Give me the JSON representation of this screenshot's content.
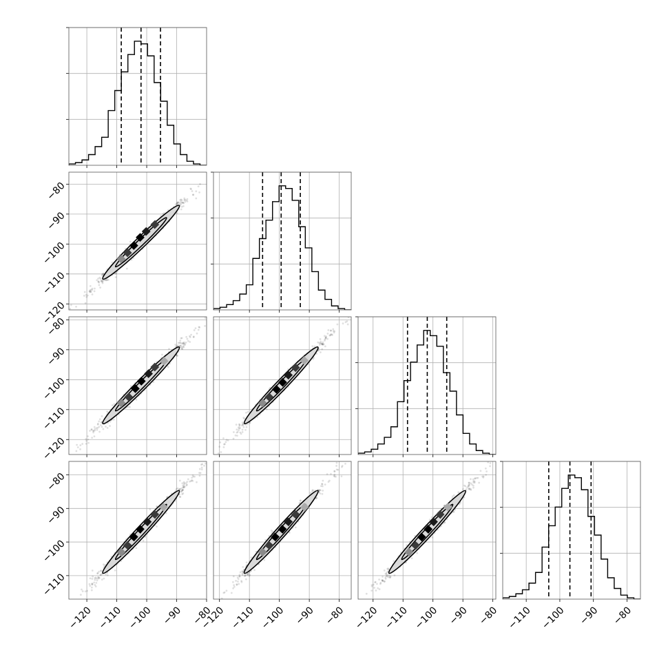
{
  "chart_data": {
    "type": "scatter",
    "plot_kind": "corner",
    "n_params": 4,
    "quantiles": [
      0.16,
      0.5,
      0.84
    ],
    "grid": true,
    "params": [
      {
        "range": [
          -126,
          -80
        ],
        "median": -101.9,
        "q16": -108.5,
        "q84": -95.4,
        "y_ticks": [
          -120,
          -110,
          -100,
          -90,
          -80
        ],
        "x_ticks": [
          -120,
          -110,
          -100,
          -90,
          -80
        ],
        "x_tick_labels": [
          "−120",
          "−110",
          "−100",
          "−90",
          "−80"
        ],
        "hist_counts": [
          1,
          2,
          4,
          8,
          14,
          21,
          41,
          56,
          70,
          83,
          93,
          91,
          82,
          62,
          48,
          30,
          16,
          8,
          3,
          1,
          0
        ]
      },
      {
        "range": [
          -122,
          -76
        ],
        "median": -99.4,
        "q16": -105.6,
        "q84": -93.0,
        "y_ticks": [
          -120,
          -110,
          -100,
          -90,
          -80
        ],
        "y_tick_labels": [
          "−120",
          "−110",
          "−100",
          "−90",
          "−80"
        ],
        "x_ticks": [
          -120,
          -110,
          -100,
          -90,
          -80
        ],
        "x_tick_labels": [
          "−120",
          "−110",
          "−100",
          "−90",
          "−80"
        ],
        "hist_counts": [
          1,
          2,
          4,
          7,
          12,
          19,
          39,
          54,
          68,
          82,
          94,
          92,
          83,
          63,
          47,
          29,
          15,
          8,
          3,
          1,
          0
        ]
      },
      {
        "range": [
          -125,
          -79
        ],
        "median": -101.9,
        "q16": -108.5,
        "q84": -95.4,
        "y_ticks": [
          -120,
          -110,
          -100,
          -90,
          -80
        ],
        "y_tick_labels": [
          "−120",
          "−110",
          "−100",
          "−90",
          "−80"
        ],
        "x_ticks": [
          -120,
          -110,
          -100,
          -90,
          -80
        ],
        "x_tick_labels": [
          "−120",
          "−110",
          "−100",
          "−90",
          "−80"
        ],
        "hist_counts": [
          1,
          2,
          4,
          8,
          13,
          21,
          40,
          56,
          70,
          83,
          94,
          90,
          82,
          62,
          48,
          30,
          16,
          8,
          3,
          1,
          0
        ]
      },
      {
        "range": [
          -117,
          -76
        ],
        "median": -97.0,
        "q16": -103.3,
        "q84": -90.7,
        "y_ticks": [
          -110,
          -100,
          -90,
          -80
        ],
        "y_tick_labels": [
          "−110",
          "−100",
          "−90",
          "−80"
        ],
        "x_ticks": [
          -110,
          -100,
          -90,
          -80
        ],
        "x_tick_labels": [
          "−110",
          "−100",
          "−90",
          "−80"
        ],
        "hist_counts": [
          1,
          2,
          4,
          7,
          12,
          20,
          39,
          55,
          69,
          83,
          93,
          91,
          82,
          62,
          48,
          30,
          16,
          8,
          3,
          1,
          0
        ]
      }
    ],
    "density_peaks": {
      "p1_vs_p0": [
        [
          -108.5,
          -105.0
        ],
        [
          -106.4,
          -102.9
        ],
        [
          -104.3,
          -100.5
        ],
        [
          -102.2,
          -97.8
        ],
        [
          -100.2,
          -95.8
        ],
        [
          -97.3,
          -93.5
        ]
      ],
      "p2_vs_p0": [
        [
          -108.5,
          -107.8
        ],
        [
          -106.0,
          -105.8
        ],
        [
          -103.8,
          -103.0
        ],
        [
          -101.8,
          -100.5
        ],
        [
          -99.4,
          -98.0
        ],
        [
          -97.3,
          -95.8
        ],
        [
          -94.2,
          -93.8
        ]
      ],
      "p2_vs_p1": [
        [
          -105.6,
          -107.8
        ],
        [
          -103.4,
          -105.8
        ],
        [
          -101.0,
          -103.2
        ],
        [
          -98.9,
          -100.9
        ],
        [
          -97.0,
          -98.5
        ],
        [
          -94.6,
          -96.0
        ],
        [
          -91.7,
          -93.6
        ]
      ],
      "p3_vs_p0": [
        [
          -108.5,
          -103.0
        ],
        [
          -106.4,
          -101.0
        ],
        [
          -104.3,
          -98.5
        ],
        [
          -102.2,
          -96.2
        ],
        [
          -99.8,
          -94.0
        ],
        [
          -97.3,
          -91.8
        ],
        [
          -94.4,
          -89.6
        ]
      ],
      "p3_vs_p1": [
        [
          -105.6,
          -103.0
        ],
        [
          -103.4,
          -101.0
        ],
        [
          -101.4,
          -98.5
        ],
        [
          -99.0,
          -96.2
        ],
        [
          -97.0,
          -94.0
        ],
        [
          -94.6,
          -91.8
        ],
        [
          -91.6,
          -89.6
        ]
      ],
      "p3_vs_p2": [
        [
          -108.0,
          -103.0
        ],
        [
          -105.8,
          -101.0
        ],
        [
          -103.8,
          -98.5
        ],
        [
          -101.6,
          -96.2
        ],
        [
          -99.8,
          -94.0
        ],
        [
          -97.6,
          -91.8
        ],
        [
          -95.0,
          -89.6
        ]
      ]
    },
    "peak_shades": [
      "#8a8a8a",
      "#3a3a3a",
      "#000000",
      "#000000",
      "#1a1a1a",
      "#3a3a3a",
      "#aaaaaa"
    ]
  }
}
